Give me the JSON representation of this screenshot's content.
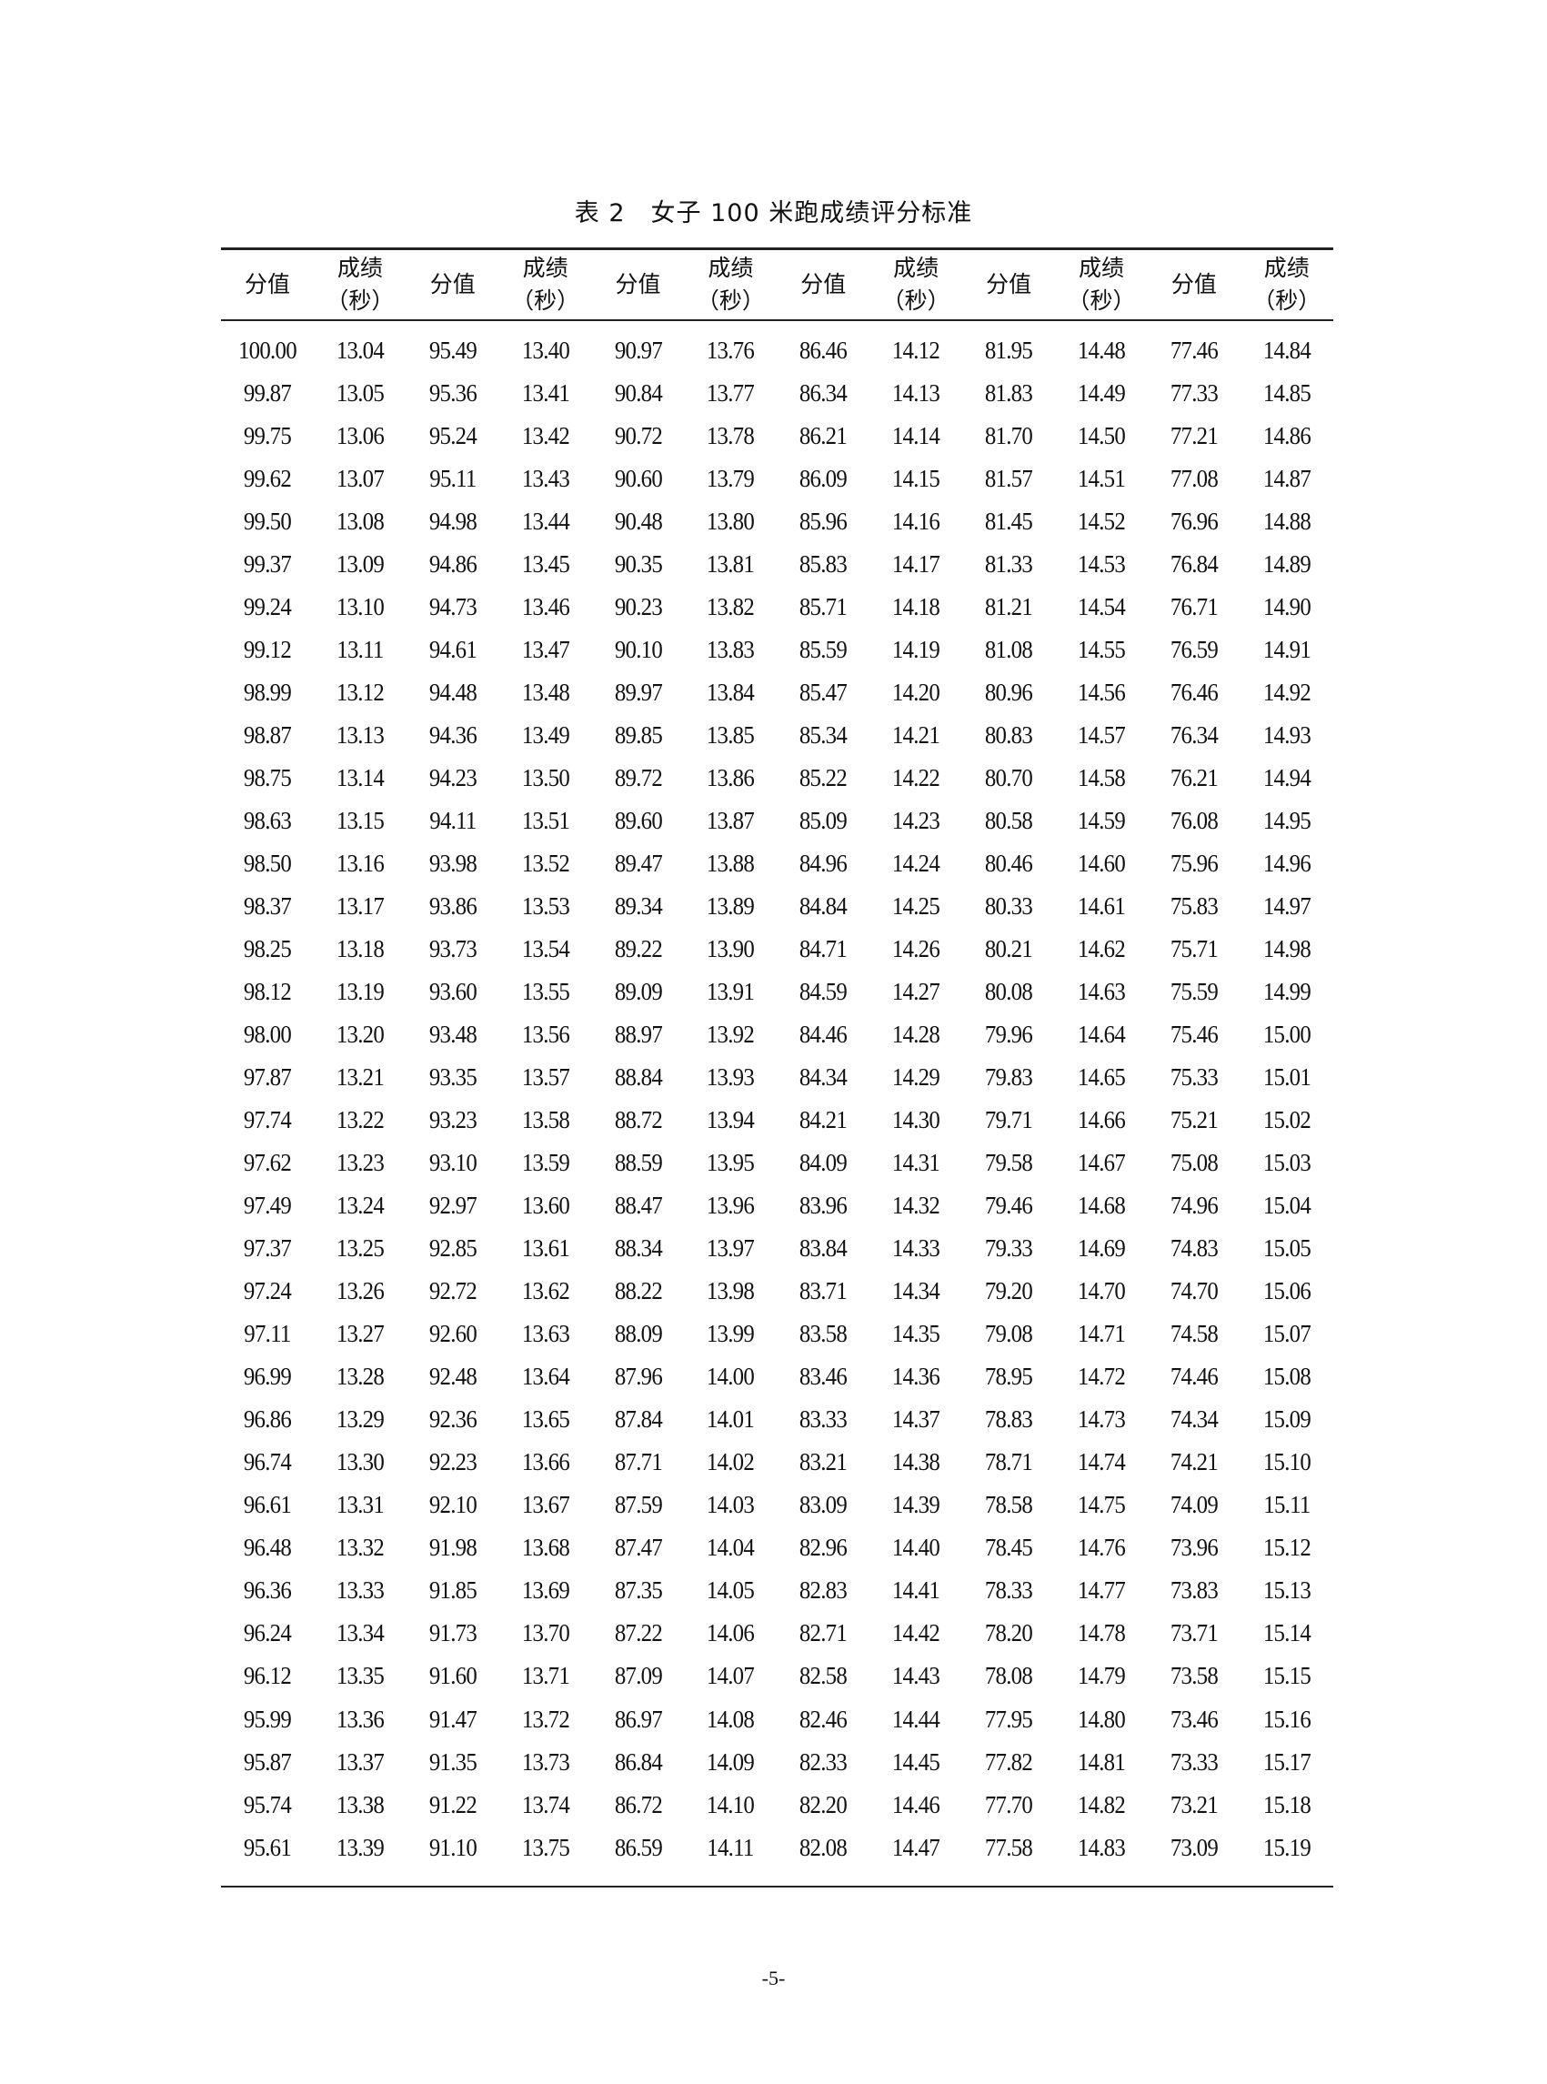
{
  "title": "表 2　女子 100 米跑成绩评分标准",
  "headers": [
    {
      "line1": "分值",
      "line2": ""
    },
    {
      "line1": "成绩",
      "line2": "（秒）"
    },
    {
      "line1": "分值",
      "line2": ""
    },
    {
      "line1": "成绩",
      "line2": "（秒）"
    },
    {
      "line1": "分值",
      "line2": ""
    },
    {
      "line1": "成绩",
      "line2": "（秒）"
    },
    {
      "line1": "分值",
      "line2": ""
    },
    {
      "line1": "成绩",
      "line2": "（秒）"
    },
    {
      "line1": "分值",
      "line2": ""
    },
    {
      "line1": "成绩",
      "line2": "（秒）"
    },
    {
      "line1": "分值",
      "line2": ""
    },
    {
      "line1": "成绩",
      "line2": "（秒）"
    }
  ],
  "rows": [
    [
      "100.00",
      "13.04",
      "95.49",
      "13.40",
      "90.97",
      "13.76",
      "86.46",
      "14.12",
      "81.95",
      "14.48",
      "77.46",
      "14.84"
    ],
    [
      "99.87",
      "13.05",
      "95.36",
      "13.41",
      "90.84",
      "13.77",
      "86.34",
      "14.13",
      "81.83",
      "14.49",
      "77.33",
      "14.85"
    ],
    [
      "99.75",
      "13.06",
      "95.24",
      "13.42",
      "90.72",
      "13.78",
      "86.21",
      "14.14",
      "81.70",
      "14.50",
      "77.21",
      "14.86"
    ],
    [
      "99.62",
      "13.07",
      "95.11",
      "13.43",
      "90.60",
      "13.79",
      "86.09",
      "14.15",
      "81.57",
      "14.51",
      "77.08",
      "14.87"
    ],
    [
      "99.50",
      "13.08",
      "94.98",
      "13.44",
      "90.48",
      "13.80",
      "85.96",
      "14.16",
      "81.45",
      "14.52",
      "76.96",
      "14.88"
    ],
    [
      "99.37",
      "13.09",
      "94.86",
      "13.45",
      "90.35",
      "13.81",
      "85.83",
      "14.17",
      "81.33",
      "14.53",
      "76.84",
      "14.89"
    ],
    [
      "99.24",
      "13.10",
      "94.73",
      "13.46",
      "90.23",
      "13.82",
      "85.71",
      "14.18",
      "81.21",
      "14.54",
      "76.71",
      "14.90"
    ],
    [
      "99.12",
      "13.11",
      "94.61",
      "13.47",
      "90.10",
      "13.83",
      "85.59",
      "14.19",
      "81.08",
      "14.55",
      "76.59",
      "14.91"
    ],
    [
      "98.99",
      "13.12",
      "94.48",
      "13.48",
      "89.97",
      "13.84",
      "85.47",
      "14.20",
      "80.96",
      "14.56",
      "76.46",
      "14.92"
    ],
    [
      "98.87",
      "13.13",
      "94.36",
      "13.49",
      "89.85",
      "13.85",
      "85.34",
      "14.21",
      "80.83",
      "14.57",
      "76.34",
      "14.93"
    ],
    [
      "98.75",
      "13.14",
      "94.23",
      "13.50",
      "89.72",
      "13.86",
      "85.22",
      "14.22",
      "80.70",
      "14.58",
      "76.21",
      "14.94"
    ],
    [
      "98.63",
      "13.15",
      "94.11",
      "13.51",
      "89.60",
      "13.87",
      "85.09",
      "14.23",
      "80.58",
      "14.59",
      "76.08",
      "14.95"
    ],
    [
      "98.50",
      "13.16",
      "93.98",
      "13.52",
      "89.47",
      "13.88",
      "84.96",
      "14.24",
      "80.46",
      "14.60",
      "75.96",
      "14.96"
    ],
    [
      "98.37",
      "13.17",
      "93.86",
      "13.53",
      "89.34",
      "13.89",
      "84.84",
      "14.25",
      "80.33",
      "14.61",
      "75.83",
      "14.97"
    ],
    [
      "98.25",
      "13.18",
      "93.73",
      "13.54",
      "89.22",
      "13.90",
      "84.71",
      "14.26",
      "80.21",
      "14.62",
      "75.71",
      "14.98"
    ],
    [
      "98.12",
      "13.19",
      "93.60",
      "13.55",
      "89.09",
      "13.91",
      "84.59",
      "14.27",
      "80.08",
      "14.63",
      "75.59",
      "14.99"
    ],
    [
      "98.00",
      "13.20",
      "93.48",
      "13.56",
      "88.97",
      "13.92",
      "84.46",
      "14.28",
      "79.96",
      "14.64",
      "75.46",
      "15.00"
    ],
    [
      "97.87",
      "13.21",
      "93.35",
      "13.57",
      "88.84",
      "13.93",
      "84.34",
      "14.29",
      "79.83",
      "14.65",
      "75.33",
      "15.01"
    ],
    [
      "97.74",
      "13.22",
      "93.23",
      "13.58",
      "88.72",
      "13.94",
      "84.21",
      "14.30",
      "79.71",
      "14.66",
      "75.21",
      "15.02"
    ],
    [
      "97.62",
      "13.23",
      "93.10",
      "13.59",
      "88.59",
      "13.95",
      "84.09",
      "14.31",
      "79.58",
      "14.67",
      "75.08",
      "15.03"
    ],
    [
      "97.49",
      "13.24",
      "92.97",
      "13.60",
      "88.47",
      "13.96",
      "83.96",
      "14.32",
      "79.46",
      "14.68",
      "74.96",
      "15.04"
    ],
    [
      "97.37",
      "13.25",
      "92.85",
      "13.61",
      "88.34",
      "13.97",
      "83.84",
      "14.33",
      "79.33",
      "14.69",
      "74.83",
      "15.05"
    ],
    [
      "97.24",
      "13.26",
      "92.72",
      "13.62",
      "88.22",
      "13.98",
      "83.71",
      "14.34",
      "79.20",
      "14.70",
      "74.70",
      "15.06"
    ],
    [
      "97.11",
      "13.27",
      "92.60",
      "13.63",
      "88.09",
      "13.99",
      "83.58",
      "14.35",
      "79.08",
      "14.71",
      "74.58",
      "15.07"
    ],
    [
      "96.99",
      "13.28",
      "92.48",
      "13.64",
      "87.96",
      "14.00",
      "83.46",
      "14.36",
      "78.95",
      "14.72",
      "74.46",
      "15.08"
    ],
    [
      "96.86",
      "13.29",
      "92.36",
      "13.65",
      "87.84",
      "14.01",
      "83.33",
      "14.37",
      "78.83",
      "14.73",
      "74.34",
      "15.09"
    ],
    [
      "96.74",
      "13.30",
      "92.23",
      "13.66",
      "87.71",
      "14.02",
      "83.21",
      "14.38",
      "78.71",
      "14.74",
      "74.21",
      "15.10"
    ],
    [
      "96.61",
      "13.31",
      "92.10",
      "13.67",
      "87.59",
      "14.03",
      "83.09",
      "14.39",
      "78.58",
      "14.75",
      "74.09",
      "15.11"
    ],
    [
      "96.48",
      "13.32",
      "91.98",
      "13.68",
      "87.47",
      "14.04",
      "82.96",
      "14.40",
      "78.45",
      "14.76",
      "73.96",
      "15.12"
    ],
    [
      "96.36",
      "13.33",
      "91.85",
      "13.69",
      "87.35",
      "14.05",
      "82.83",
      "14.41",
      "78.33",
      "14.77",
      "73.83",
      "15.13"
    ],
    [
      "96.24",
      "13.34",
      "91.73",
      "13.70",
      "87.22",
      "14.06",
      "82.71",
      "14.42",
      "78.20",
      "14.78",
      "73.71",
      "15.14"
    ],
    [
      "96.12",
      "13.35",
      "91.60",
      "13.71",
      "87.09",
      "14.07",
      "82.58",
      "14.43",
      "78.08",
      "14.79",
      "73.58",
      "15.15"
    ],
    [
      "95.99",
      "13.36",
      "91.47",
      "13.72",
      "86.97",
      "14.08",
      "82.46",
      "14.44",
      "77.95",
      "14.80",
      "73.46",
      "15.16"
    ],
    [
      "95.87",
      "13.37",
      "91.35",
      "13.73",
      "86.84",
      "14.09",
      "82.33",
      "14.45",
      "77.82",
      "14.81",
      "73.33",
      "15.17"
    ],
    [
      "95.74",
      "13.38",
      "91.22",
      "13.74",
      "86.72",
      "14.10",
      "82.20",
      "14.46",
      "77.70",
      "14.82",
      "73.21",
      "15.18"
    ],
    [
      "95.61",
      "13.39",
      "91.10",
      "13.75",
      "86.59",
      "14.11",
      "82.08",
      "14.47",
      "77.58",
      "14.83",
      "73.09",
      "15.19"
    ]
  ],
  "page_number": "-5-"
}
